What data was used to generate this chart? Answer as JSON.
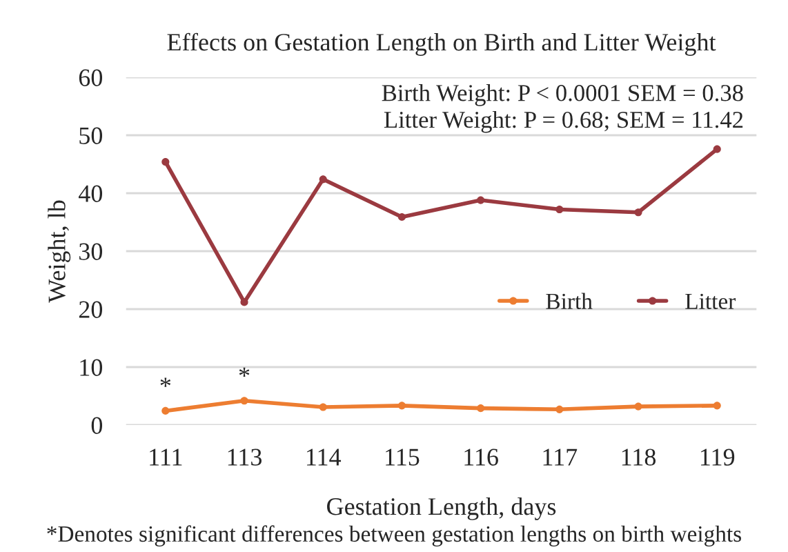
{
  "chart_data": {
    "type": "line",
    "title": "Effects on Gestation Length on Birth and Litter Weight",
    "xlabel": "Gestation Length, days",
    "ylabel": "Weight, lb",
    "categories": [
      "111",
      "113",
      "114",
      "115",
      "116",
      "117",
      "118",
      "119"
    ],
    "series": [
      {
        "name": "Birth",
        "color": "#ed7d31",
        "values": [
          2.45,
          4.2,
          3.1,
          3.35,
          2.9,
          2.7,
          3.2,
          3.35
        ]
      },
      {
        "name": "Litter",
        "color": "#9b3a40",
        "values": [
          45.4,
          21.2,
          42.4,
          35.9,
          38.8,
          37.2,
          36.7,
          47.6
        ]
      }
    ],
    "ylim": [
      0,
      60
    ],
    "yticks": [
      0,
      10,
      20,
      30,
      40,
      50,
      60
    ],
    "grid": "y",
    "legend": "right",
    "marker": "circle",
    "line_style": "solid",
    "annotations": [
      {
        "text": "*",
        "x": "111",
        "y": 2.45
      },
      {
        "text": "*",
        "x": "113",
        "y": 4.2
      },
      "Birth Weight: P < 0.0001 SEM = 0.38",
      "Litter Weight: P = 0.68; SEM = 11.42",
      "*Denotes significant differences between gestation lengths on birth weights"
    ]
  }
}
